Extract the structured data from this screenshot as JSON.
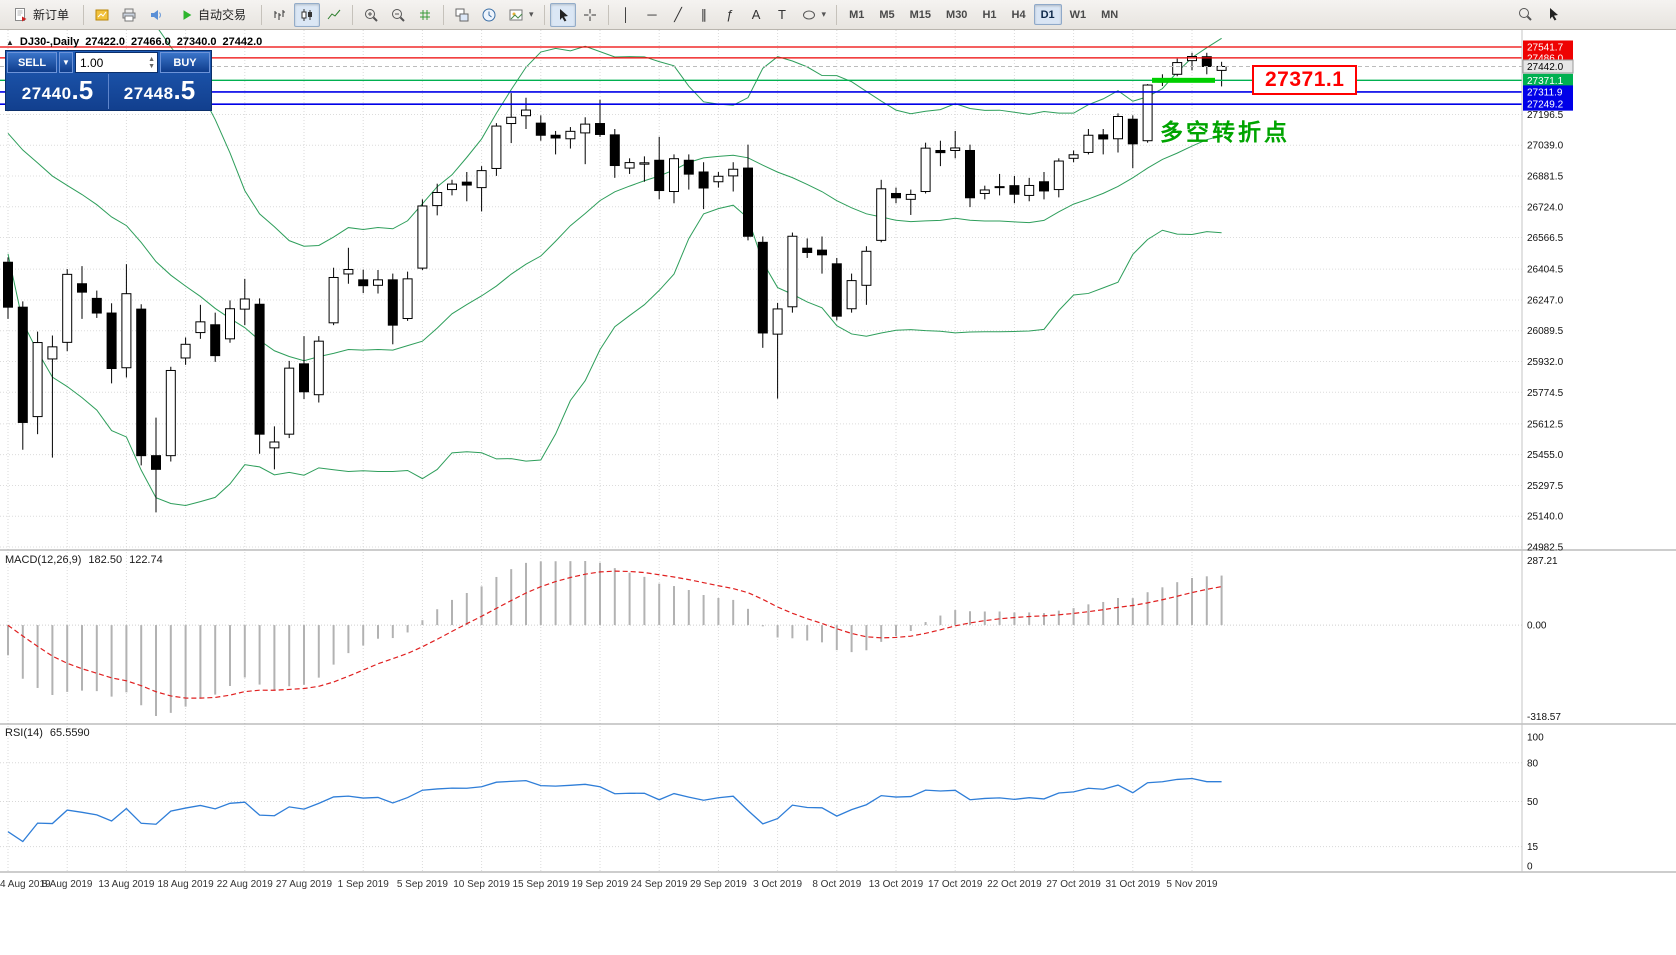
{
  "toolbar": {
    "new_order_label": "新订单",
    "auto_trading_label": "自动交易",
    "timeframes": {
      "items": [
        "M1",
        "M5",
        "M15",
        "M30",
        "H1",
        "H4",
        "D1",
        "W1",
        "MN"
      ],
      "active": "D1"
    }
  },
  "trade_panel": {
    "sell_label": "SELL",
    "buy_label": "BUY",
    "lot_size": "1.00",
    "sell_price_main": "27440",
    "sell_price_frac": ".5",
    "buy_price_main": "27448",
    "buy_price_frac": ".5"
  },
  "chart_header": {
    "symbol_period": "DJ30-,Daily",
    "open": "27422.0",
    "high": "27466.0",
    "low": "27340.0",
    "close": "27442.0"
  },
  "annotations": {
    "price_callout": "27371.1",
    "pivot_label": "多空转折点"
  },
  "indicators": {
    "macd": {
      "label": "MACD(12,26,9)",
      "main_value": "182.50",
      "signal_value": "122.74",
      "scale_max": "287.21",
      "scale_zero": "0.00",
      "scale_min": "-318.57"
    },
    "rsi": {
      "label": "RSI(14)",
      "value": "65.5590",
      "scale": [
        "100",
        "80",
        "50",
        "15",
        "0"
      ],
      "levels": [
        80,
        50,
        15
      ]
    }
  },
  "chart_data": {
    "type": "candlestick",
    "symbol": "DJ30-",
    "timeframe": "Daily",
    "label_step": 4,
    "date_labels": [
      "4 Aug 2019",
      "8 Aug 2019",
      "13 Aug 2019",
      "18 Aug 2019",
      "22 Aug 2019",
      "27 Aug 2019",
      "1 Sep 2019",
      "5 Sep 2019",
      "10 Sep 2019",
      "15 Sep 2019",
      "19 Sep 2019",
      "24 Sep 2019",
      "29 Sep 2019",
      "3 Oct 2019",
      "8 Oct 2019",
      "13 Oct 2019",
      "17 Oct 2019",
      "22 Oct 2019",
      "27 Oct 2019",
      "31 Oct 2019",
      "5 Nov 2019"
    ],
    "price_ticks": [
      "27196.5",
      "27039.0",
      "26881.5",
      "26724.0",
      "26566.5",
      "26404.5",
      "26247.0",
      "26089.5",
      "25932.0",
      "25774.5",
      "25612.5",
      "25455.0",
      "25297.5",
      "25140.0",
      "24982.5"
    ],
    "levels": [
      {
        "price": 27541.7,
        "label": "27541.7",
        "color": "#ee0202",
        "width": 1.3,
        "style": "line"
      },
      {
        "price": 27486.0,
        "label": "27486.0",
        "color": "#ee0202",
        "width": 1.3,
        "style": "line"
      },
      {
        "price": 27442.0,
        "label": "27442.0",
        "color": "#c8c8c8",
        "width": 1,
        "style": "current"
      },
      {
        "price": 27371.1,
        "label": "27371.1",
        "color": "#00b050",
        "width": 1.4,
        "style": "line",
        "thick_segment": true
      },
      {
        "price": 27311.9,
        "label": "27311.9",
        "color": "#0000e8",
        "width": 1.6,
        "style": "line"
      },
      {
        "price": 27249.2,
        "label": "27249.2",
        "color": "#0000e8",
        "width": 1.6,
        "style": "line"
      }
    ],
    "bollinger": {
      "period": 20,
      "deviation": 2
    },
    "macd_params": [
      12,
      26,
      9
    ],
    "rsi_period": 14,
    "prehistory_closes": [
      26900,
      26806,
      26783,
      26860,
      27088,
      27332,
      27340,
      27359,
      27336,
      27220,
      27223,
      27154,
      27160,
      27172,
      27349,
      27270,
      27141,
      27192,
      27190,
      27221,
      27198,
      26864,
      26583,
      26485
    ],
    "candles": [
      [
        26440,
        26465,
        26150,
        26210
      ],
      [
        26210,
        26240,
        25480,
        25620
      ],
      [
        25650,
        26085,
        25560,
        26029
      ],
      [
        25945,
        26065,
        25440,
        26007
      ],
      [
        26030,
        26405,
        25985,
        26378
      ],
      [
        26330,
        26420,
        26150,
        26287
      ],
      [
        26255,
        26295,
        26155,
        26180
      ],
      [
        26180,
        26230,
        25820,
        25896
      ],
      [
        25900,
        26430,
        25850,
        26279
      ],
      [
        26200,
        26225,
        25400,
        25450
      ],
      [
        25450,
        25645,
        25160,
        25380
      ],
      [
        25450,
        25905,
        25420,
        25886
      ],
      [
        25950,
        26055,
        25915,
        26020
      ],
      [
        26080,
        26222,
        26048,
        26135
      ],
      [
        26120,
        26182,
        25930,
        25962
      ],
      [
        26048,
        26245,
        26028,
        26202
      ],
      [
        26200,
        26355,
        26118,
        26252
      ],
      [
        26225,
        26255,
        25460,
        25560
      ],
      [
        25490,
        25600,
        25380,
        25520
      ],
      [
        25560,
        25935,
        25540,
        25898
      ],
      [
        25920,
        26062,
        25740,
        25777
      ],
      [
        25762,
        26062,
        25722,
        26036
      ],
      [
        26130,
        26412,
        26118,
        26362
      ],
      [
        26380,
        26514,
        26330,
        26403
      ],
      [
        26350,
        26402,
        26282,
        26320
      ],
      [
        26322,
        26400,
        26280,
        26350
      ],
      [
        26350,
        26382,
        26020,
        26118
      ],
      [
        26152,
        26392,
        26140,
        26355
      ],
      [
        26410,
        26762,
        26400,
        26728
      ],
      [
        26730,
        26842,
        26680,
        26797
      ],
      [
        26812,
        26862,
        26782,
        26840
      ],
      [
        26850,
        26902,
        26752,
        26835
      ],
      [
        26822,
        26932,
        26700,
        26909
      ],
      [
        26920,
        27152,
        26882,
        27137
      ],
      [
        27150,
        27306,
        27050,
        27182
      ],
      [
        27190,
        27282,
        27122,
        27219
      ],
      [
        27152,
        27192,
        27062,
        27090
      ],
      [
        27090,
        27112,
        26992,
        27076
      ],
      [
        27072,
        27132,
        27022,
        27110
      ],
      [
        27102,
        27182,
        26942,
        27147
      ],
      [
        27150,
        27272,
        27082,
        27094
      ],
      [
        27092,
        27122,
        26872,
        26935
      ],
      [
        26922,
        26972,
        26892,
        26950
      ],
      [
        26942,
        26982,
        26852,
        26949
      ],
      [
        26962,
        27082,
        26762,
        26807
      ],
      [
        26802,
        26992,
        26742,
        26970
      ],
      [
        26962,
        26992,
        26812,
        26891
      ],
      [
        26902,
        26952,
        26712,
        26820
      ],
      [
        26852,
        26902,
        26822,
        26880
      ],
      [
        26882,
        26952,
        26802,
        26916
      ],
      [
        26922,
        27042,
        26552,
        26573
      ],
      [
        26542,
        26572,
        26002,
        26078
      ],
      [
        26072,
        26232,
        25742,
        26201
      ],
      [
        26212,
        26592,
        26182,
        26573
      ],
      [
        26512,
        26562,
        26462,
        26490
      ],
      [
        26502,
        26572,
        26382,
        26478
      ],
      [
        26432,
        26462,
        26142,
        26164
      ],
      [
        26202,
        26382,
        26182,
        26346
      ],
      [
        26322,
        26522,
        26222,
        26496
      ],
      [
        26552,
        26862,
        26542,
        26816
      ],
      [
        26792,
        26822,
        26742,
        26770
      ],
      [
        26762,
        26812,
        26682,
        26787
      ],
      [
        26802,
        27052,
        26792,
        27024
      ],
      [
        27012,
        27062,
        26932,
        27001
      ],
      [
        27012,
        27112,
        26972,
        27025
      ],
      [
        27012,
        27042,
        26722,
        26770
      ],
      [
        26792,
        26832,
        26762,
        26810
      ],
      [
        26822,
        26892,
        26782,
        26827
      ],
      [
        26832,
        26882,
        26742,
        26788
      ],
      [
        26782,
        26872,
        26752,
        26833
      ],
      [
        26852,
        26902,
        26762,
        26805
      ],
      [
        26812,
        26972,
        26772,
        26958
      ],
      [
        26972,
        27012,
        26952,
        26990
      ],
      [
        27002,
        27122,
        26992,
        27090
      ],
      [
        27092,
        27122,
        26992,
        27071
      ],
      [
        27072,
        27202,
        27002,
        27186
      ],
      [
        27172,
        27192,
        26922,
        27046
      ],
      [
        27062,
        27352,
        27052,
        27347
      ],
      [
        27362,
        27402,
        27342,
        27380
      ],
      [
        27402,
        27482,
        27392,
        27462
      ],
      [
        27472,
        27512,
        27422,
        27493
      ],
      [
        27492,
        27512,
        27402,
        27442
      ],
      [
        27422,
        27466,
        27340,
        27442
      ]
    ]
  }
}
